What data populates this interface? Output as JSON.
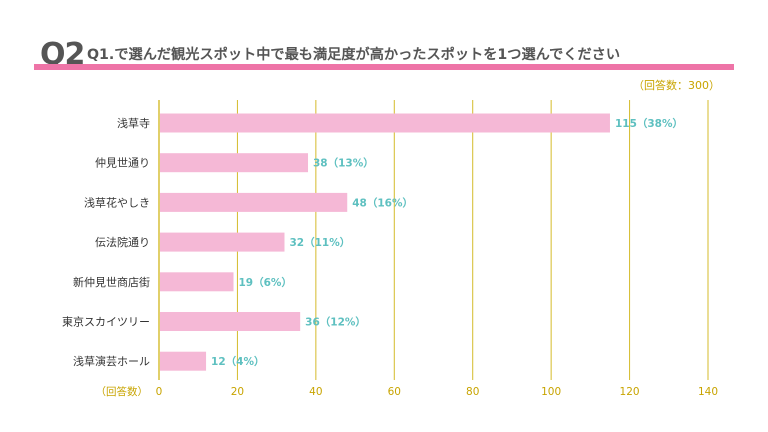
{
  "header": {
    "badge": "Q2",
    "question": "Q1.で選んだ観光スポット中で最も満足度が高かったスポットを1つ選んでください",
    "respondents": "（回答数：300）"
  },
  "colors": {
    "bar": "#f5b8d6",
    "grid": "#d4bb2b",
    "value_label": "#5ec0c0",
    "accent": "#ee74a7",
    "axis_text": "#c8a400",
    "category_text": "#333333"
  },
  "chart_data": {
    "type": "bar",
    "orientation": "horizontal",
    "categories": [
      "浅草寺",
      "仲見世通り",
      "浅草花やしき",
      "伝法院通り",
      "新仲見世商店街",
      "東京スカイツリー",
      "浅草演芸ホール"
    ],
    "values": [
      115,
      38,
      48,
      32,
      19,
      36,
      12
    ],
    "percents": [
      "38%",
      "13%",
      "16%",
      "11%",
      "6%",
      "12%",
      "4%"
    ],
    "value_labels": [
      "115（38%）",
      "38（13%）",
      "48（16%）",
      "32（11%）",
      "19（6%）",
      "36（12%）",
      "12（4%）"
    ],
    "xlabel": "（回答数）",
    "xlim": [
      0,
      140
    ],
    "xticks": [
      0,
      20,
      40,
      60,
      80,
      100,
      120,
      140
    ],
    "grid": true
  }
}
